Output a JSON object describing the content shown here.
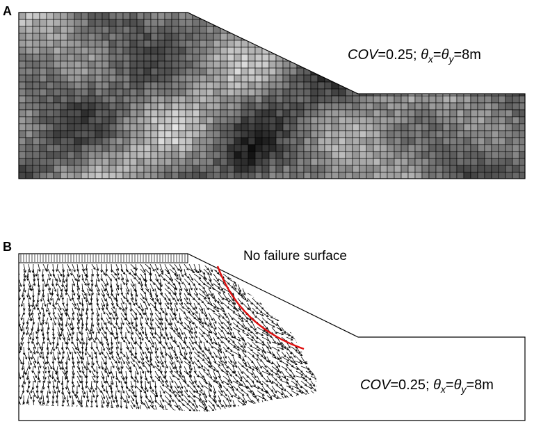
{
  "panel_a": {
    "label": "A",
    "annotation": [
      "COV",
      "=0.25; ",
      "θ",
      "x",
      "=",
      "θ",
      "y",
      "=8m"
    ]
  },
  "panel_b": {
    "label": "B",
    "note": "No failure surface",
    "annotation": [
      "COV",
      "=0.25; ",
      "θ",
      "x",
      "=",
      "θ",
      "y",
      "=8m"
    ]
  }
}
